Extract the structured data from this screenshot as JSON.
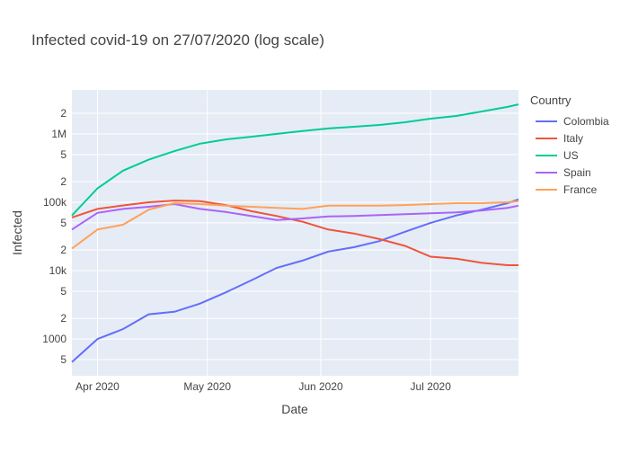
{
  "chart_data": {
    "type": "line",
    "title": "Infected covid-19 on 27/07/2020  (log scale)",
    "x_label": "Date",
    "y_label": "Infected",
    "legend_title": "Country",
    "log_scale_y": true,
    "grid": true,
    "x": [
      "2020-03-25",
      "2020-04-01",
      "2020-04-08",
      "2020-04-15",
      "2020-04-22",
      "2020-04-29",
      "2020-05-06",
      "2020-05-13",
      "2020-05-20",
      "2020-05-27",
      "2020-06-03",
      "2020-06-10",
      "2020-06-17",
      "2020-06-24",
      "2020-07-01",
      "2020-07-08",
      "2020-07-15",
      "2020-07-22",
      "2020-07-25"
    ],
    "xlim": [
      "2020-03-25",
      "2020-07-25"
    ],
    "xticks": [
      {
        "value": "2020-04-01",
        "label": "Apr 2020"
      },
      {
        "value": "2020-05-01",
        "label": "May 2020"
      },
      {
        "value": "2020-06-01",
        "label": "Jun 2020"
      },
      {
        "value": "2020-07-01",
        "label": "Jul 2020"
      }
    ],
    "ylim": [
      290,
      4400000
    ],
    "yticks": [
      {
        "value": 500,
        "label": "5"
      },
      1000,
      {
        "value": 2000,
        "label": "2"
      },
      {
        "value": 5000,
        "label": "5"
      },
      {
        "value": 10000,
        "label": "10k"
      },
      {
        "value": 20000,
        "label": "2"
      },
      {
        "value": 50000,
        "label": "5"
      },
      {
        "value": 100000,
        "label": "100k"
      },
      {
        "value": 200000,
        "label": "2"
      },
      {
        "value": 500000,
        "label": "5"
      },
      {
        "value": 1000000,
        "label": "1M"
      },
      {
        "value": 2000000,
        "label": "2"
      }
    ],
    "series": [
      {
        "name": "Colombia",
        "color": "#636efa",
        "values": [
          460,
          1000,
          1400,
          2300,
          2500,
          3300,
          4800,
          7200,
          11000,
          14000,
          19000,
          22000,
          27000,
          37000,
          50000,
          64000,
          78000,
          97000,
          110000
        ]
      },
      {
        "name": "Italy",
        "color": "#ef553b",
        "values": [
          60000,
          80000,
          90000,
          100000,
          106000,
          104000,
          91000,
          74000,
          63000,
          52000,
          40000,
          35000,
          29000,
          23000,
          16000,
          15000,
          13000,
          12000,
          12000
        ]
      },
      {
        "name": "US",
        "color": "#00cc96",
        "values": [
          64000,
          160000,
          290000,
          420000,
          560000,
          720000,
          830000,
          910000,
          1000000,
          1100000,
          1200000,
          1270000,
          1350000,
          1480000,
          1670000,
          1830000,
          2130000,
          2480000,
          2700000
        ]
      },
      {
        "name": "Spain",
        "color": "#ab63fa",
        "values": [
          40000,
          70000,
          80000,
          86000,
          94000,
          80000,
          72000,
          63000,
          55000,
          58000,
          62000,
          63000,
          65000,
          67000,
          69000,
          71000,
          76000,
          83000,
          89000
        ]
      },
      {
        "name": "France",
        "color": "#ffa15a",
        "values": [
          21000,
          40000,
          47000,
          78000,
          97000,
          94000,
          89000,
          86000,
          83000,
          80000,
          89000,
          89000,
          89000,
          91000,
          94000,
          97000,
          97000,
          100000,
          104000
        ]
      }
    ]
  }
}
